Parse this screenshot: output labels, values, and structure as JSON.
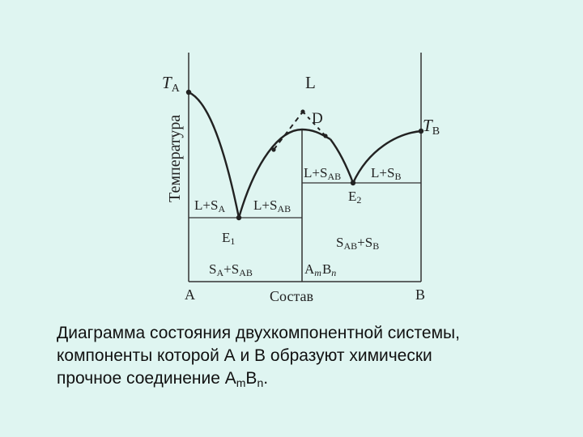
{
  "diagram": {
    "ylabel": "Температура",
    "xlabel": "Состав",
    "axis_left": "A",
    "axis_right": "B",
    "ta": {
      "main": "T",
      "sub": "A"
    },
    "tb": {
      "main": "T",
      "sub": "B"
    },
    "liquid": "L",
    "point_d": "D",
    "e1": {
      "main": "E",
      "sub": "1"
    },
    "e2": {
      "main": "E",
      "sub": "2"
    },
    "region_l_sa": {
      "a": "L+S",
      "b": "A"
    },
    "region_l_sab_left": {
      "a": "L+S",
      "b": "AB"
    },
    "region_l_sab_right": {
      "a": "L+S",
      "b": "AB"
    },
    "region_l_sb": {
      "a": "L+S",
      "b": "B"
    },
    "region_sa_sab": {
      "a": "S",
      "b": "A",
      "c": "+S",
      "d": "AB"
    },
    "region_sab_sb": {
      "a": "S",
      "b": "AB",
      "c": "+S",
      "d": "B"
    },
    "compound": {
      "a": "A",
      "m": "m",
      "b": "B",
      "n": "n"
    }
  },
  "caption": {
    "line1": "Диаграмма состояния двухкомпонентной системы,",
    "line2": "компоненты которой А и В образуют химически",
    "line3_pre": "прочное соединение А",
    "line3_sub1": "m",
    "line3_mid": "В",
    "line3_sub2": "n",
    "line3_post": "."
  }
}
